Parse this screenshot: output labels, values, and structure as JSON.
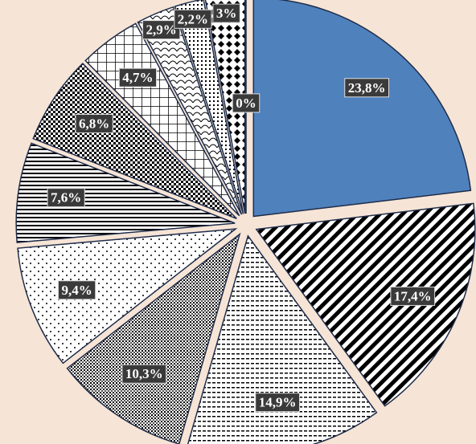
{
  "chart_data": {
    "type": "pie",
    "values": [
      23.8,
      17.4,
      14.9,
      10.3,
      9.4,
      7.6,
      6.8,
      4.7,
      2.9,
      2.2,
      3,
      0
    ],
    "value_labels": [
      "23,8%",
      "17,4%",
      "14,9%",
      "10,3%",
      "9,4%",
      "7,6%",
      "6,8%",
      "4,7%",
      "2,9%",
      "2,2%",
      "3%",
      "0%"
    ],
    "color": "#4f81bd"
  }
}
